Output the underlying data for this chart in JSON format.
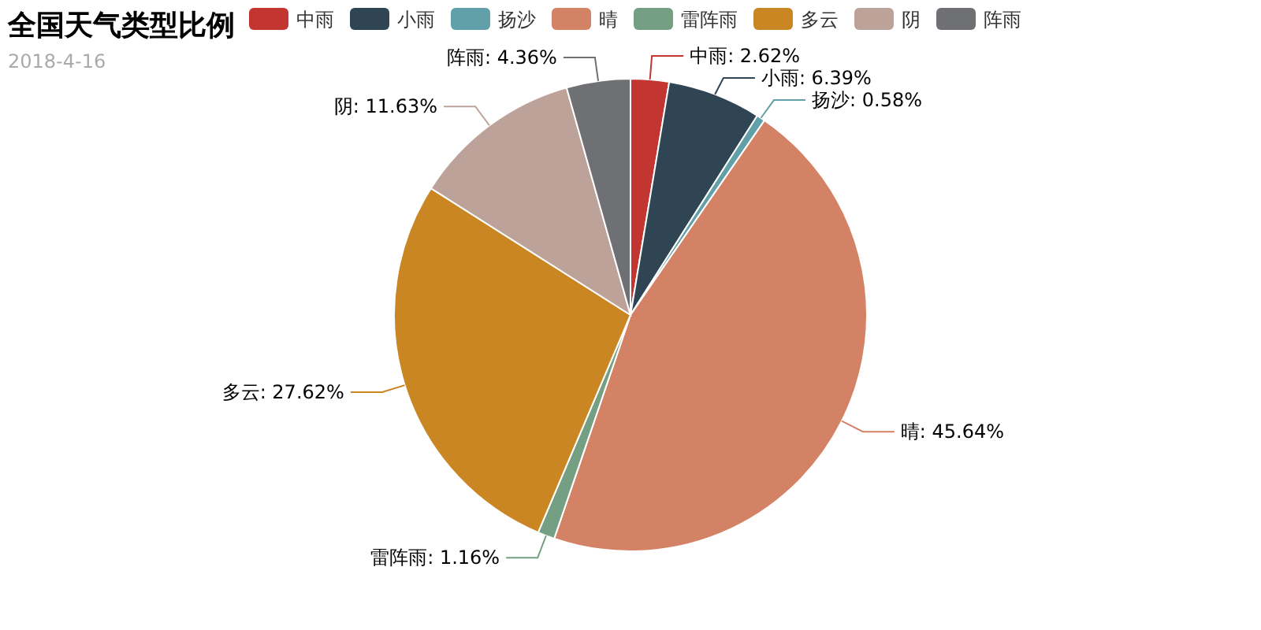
{
  "chart_data": {
    "type": "pie",
    "title": "全国天气类型比例",
    "subtitle": "2018-4-16",
    "categories": [
      "中雨",
      "小雨",
      "扬沙",
      "晴",
      "雷阵雨",
      "多云",
      "阴",
      "阵雨"
    ],
    "values": [
      2.62,
      6.39,
      0.58,
      45.64,
      1.16,
      27.62,
      11.63,
      4.36
    ],
    "colors": [
      "#c23531",
      "#2f4554",
      "#61a0a8",
      "#d48265",
      "#749f83",
      "#ca8622",
      "#bda29a",
      "#6e7074"
    ],
    "value_labels": [
      "中雨: 2.62%",
      "小雨: 6.39%",
      "扬沙: 0.58%",
      "晴: 45.64%",
      "雷阵雨: 1.16%",
      "多云: 27.62%",
      "阴: 11.63%",
      "阵雨: 4.36%"
    ],
    "legend": "top"
  }
}
